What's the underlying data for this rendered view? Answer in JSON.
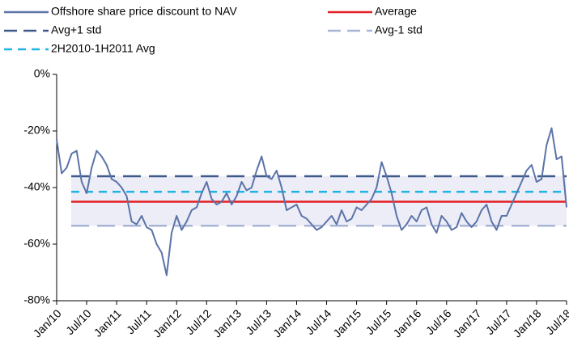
{
  "chart_data": {
    "type": "line",
    "x": [
      "2010-01",
      "2010-02",
      "2010-03",
      "2010-04",
      "2010-05",
      "2010-06",
      "2010-07",
      "2010-08",
      "2010-09",
      "2010-10",
      "2010-11",
      "2010-12",
      "2011-01",
      "2011-02",
      "2011-03",
      "2011-04",
      "2011-05",
      "2011-06",
      "2011-07",
      "2011-08",
      "2011-09",
      "2011-10",
      "2011-11",
      "2011-12",
      "2012-01",
      "2012-02",
      "2012-03",
      "2012-04",
      "2012-05",
      "2012-06",
      "2012-07",
      "2012-08",
      "2012-09",
      "2012-10",
      "2012-11",
      "2012-12",
      "2013-01",
      "2013-02",
      "2013-03",
      "2013-04",
      "2013-05",
      "2013-06",
      "2013-07",
      "2013-08",
      "2013-09",
      "2013-10",
      "2013-11",
      "2013-12",
      "2014-01",
      "2014-02",
      "2014-03",
      "2014-04",
      "2014-05",
      "2014-06",
      "2014-07",
      "2014-08",
      "2014-09",
      "2014-10",
      "2014-11",
      "2014-12",
      "2015-01",
      "2015-02",
      "2015-03",
      "2015-04",
      "2015-05",
      "2015-06",
      "2015-07",
      "2015-08",
      "2015-09",
      "2015-10",
      "2015-11",
      "2015-12",
      "2016-01",
      "2016-02",
      "2016-03",
      "2016-04",
      "2016-05",
      "2016-06",
      "2016-07",
      "2016-08",
      "2016-09",
      "2016-10",
      "2016-11",
      "2016-12",
      "2017-01",
      "2017-02",
      "2017-03",
      "2017-04",
      "2017-05",
      "2017-06",
      "2017-07",
      "2017-08",
      "2017-09",
      "2017-10",
      "2017-11",
      "2017-12",
      "2018-01",
      "2018-02",
      "2018-03",
      "2018-04",
      "2018-05",
      "2018-06",
      "2018-07"
    ],
    "series": [
      {
        "name": "Offshore share price discount to NAV",
        "color": "#5b73a8",
        "values": [
          -23,
          -35,
          -33,
          -28,
          -27,
          -38,
          -42,
          -33,
          -27,
          -29,
          -32,
          -37,
          -38,
          -40,
          -43,
          -52,
          -53,
          -50,
          -54,
          -55,
          -60,
          -63,
          -71,
          -56,
          -50,
          -55,
          -52,
          -48,
          -47,
          -42,
          -38,
          -44,
          -46,
          -45,
          -42,
          -46,
          -43,
          -38,
          -41,
          -40,
          -34,
          -29,
          -36,
          -37,
          -34,
          -40,
          -48,
          -47,
          -46,
          -50,
          -51,
          -53,
          -55,
          -54,
          -52,
          -50,
          -53,
          -48,
          -52,
          -51,
          -47,
          -48,
          -46,
          -44,
          -40,
          -31,
          -36,
          -42,
          -50,
          -55,
          -53,
          -50,
          -52,
          -48,
          -47,
          -53,
          -56,
          -50,
          -52,
          -55,
          -54,
          -49,
          -52,
          -54,
          -52,
          -48,
          -46,
          -52,
          -55,
          -50,
          -50,
          -46,
          -42,
          -38,
          -34,
          -32,
          -38,
          -37,
          -25,
          -19,
          -30,
          -29,
          -47
        ]
      }
    ],
    "reference_lines": [
      {
        "name": "Average",
        "color": "#e31e24",
        "value": -45,
        "dash": "solid"
      },
      {
        "name": "Avg+1 std",
        "color": "#3f5a8a",
        "value": -36,
        "dash": "long"
      },
      {
        "name": "Avg-1 std",
        "color": "#a7b4d6",
        "value": -53.5,
        "dash": "long"
      },
      {
        "name": "2H2010-1H2011 Avg",
        "color": "#1fb4e6",
        "value": -41.5,
        "dash": "short"
      }
    ],
    "band_color": "#ecedf6",
    "xlim": [
      "2010-01",
      "2018-07"
    ],
    "xticks": [
      {
        "value": "2010-01",
        "label": "Jan/10"
      },
      {
        "value": "2010-07",
        "label": "Jul/10"
      },
      {
        "value": "2011-01",
        "label": "Jan/11"
      },
      {
        "value": "2011-07",
        "label": "Jul/11"
      },
      {
        "value": "2012-01",
        "label": "Jan/12"
      },
      {
        "value": "2012-07",
        "label": "Jul/12"
      },
      {
        "value": "2013-01",
        "label": "Jan/13"
      },
      {
        "value": "2013-07",
        "label": "Jul/13"
      },
      {
        "value": "2014-01",
        "label": "Jan/14"
      },
      {
        "value": "2014-07",
        "label": "Jul/14"
      },
      {
        "value": "2015-01",
        "label": "Jan/15"
      },
      {
        "value": "2015-07",
        "label": "Jul/15"
      },
      {
        "value": "2016-01",
        "label": "Jan/16"
      },
      {
        "value": "2016-07",
        "label": "Jul/16"
      },
      {
        "value": "2017-01",
        "label": "Jan/17"
      },
      {
        "value": "2017-07",
        "label": "Jul/17"
      },
      {
        "value": "2018-01",
        "label": "Jan/18"
      },
      {
        "value": "2018-07",
        "label": "Jul/18"
      }
    ],
    "ylim": [
      -80,
      0
    ],
    "yticks": [
      {
        "value": -80,
        "label": "-80%"
      },
      {
        "value": -60,
        "label": "-60%"
      },
      {
        "value": -40,
        "label": "-40%"
      },
      {
        "value": -20,
        "label": "-20%"
      },
      {
        "value": 0,
        "label": "0%"
      }
    ]
  }
}
